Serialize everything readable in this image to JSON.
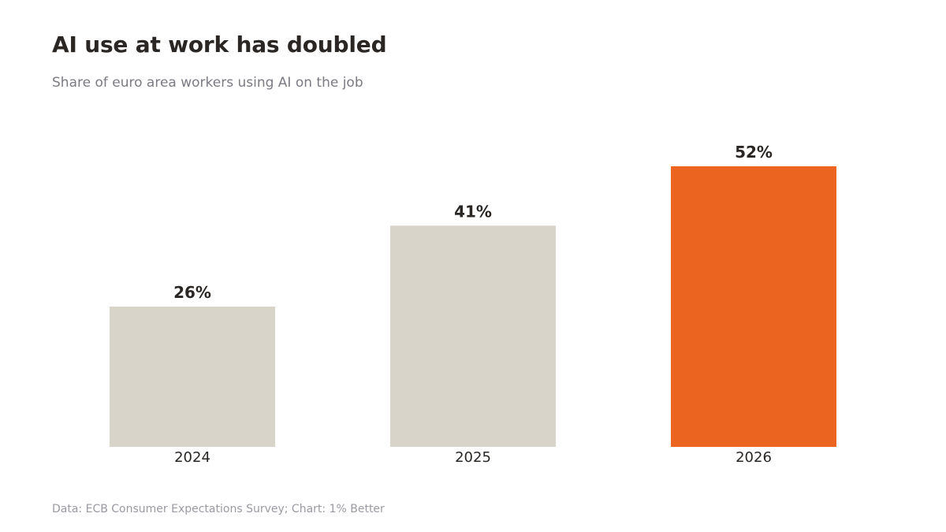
{
  "title": "AI use at work has doubled",
  "subtitle": "Share of euro area workers using AI on the job",
  "source": "Data: ECB Consumer Expectations Survey; Chart: 1% Better",
  "colors": {
    "muted_bar": "#d9d4ca",
    "highlight_bar": "#ec6520",
    "text": "#2a2623"
  },
  "chart_data": {
    "type": "bar",
    "categories": [
      "2024",
      "2025",
      "2026"
    ],
    "values": [
      26,
      41,
      52
    ],
    "value_labels": [
      "26%",
      "41%",
      "52%"
    ],
    "highlight": "2026",
    "unit": "%",
    "title": "AI use at work has doubled",
    "subtitle": "Share of euro area workers using AI on the job",
    "xlabel": "",
    "ylabel": "",
    "ylim": [
      0,
      52
    ],
    "grid": false,
    "legend": "none"
  }
}
